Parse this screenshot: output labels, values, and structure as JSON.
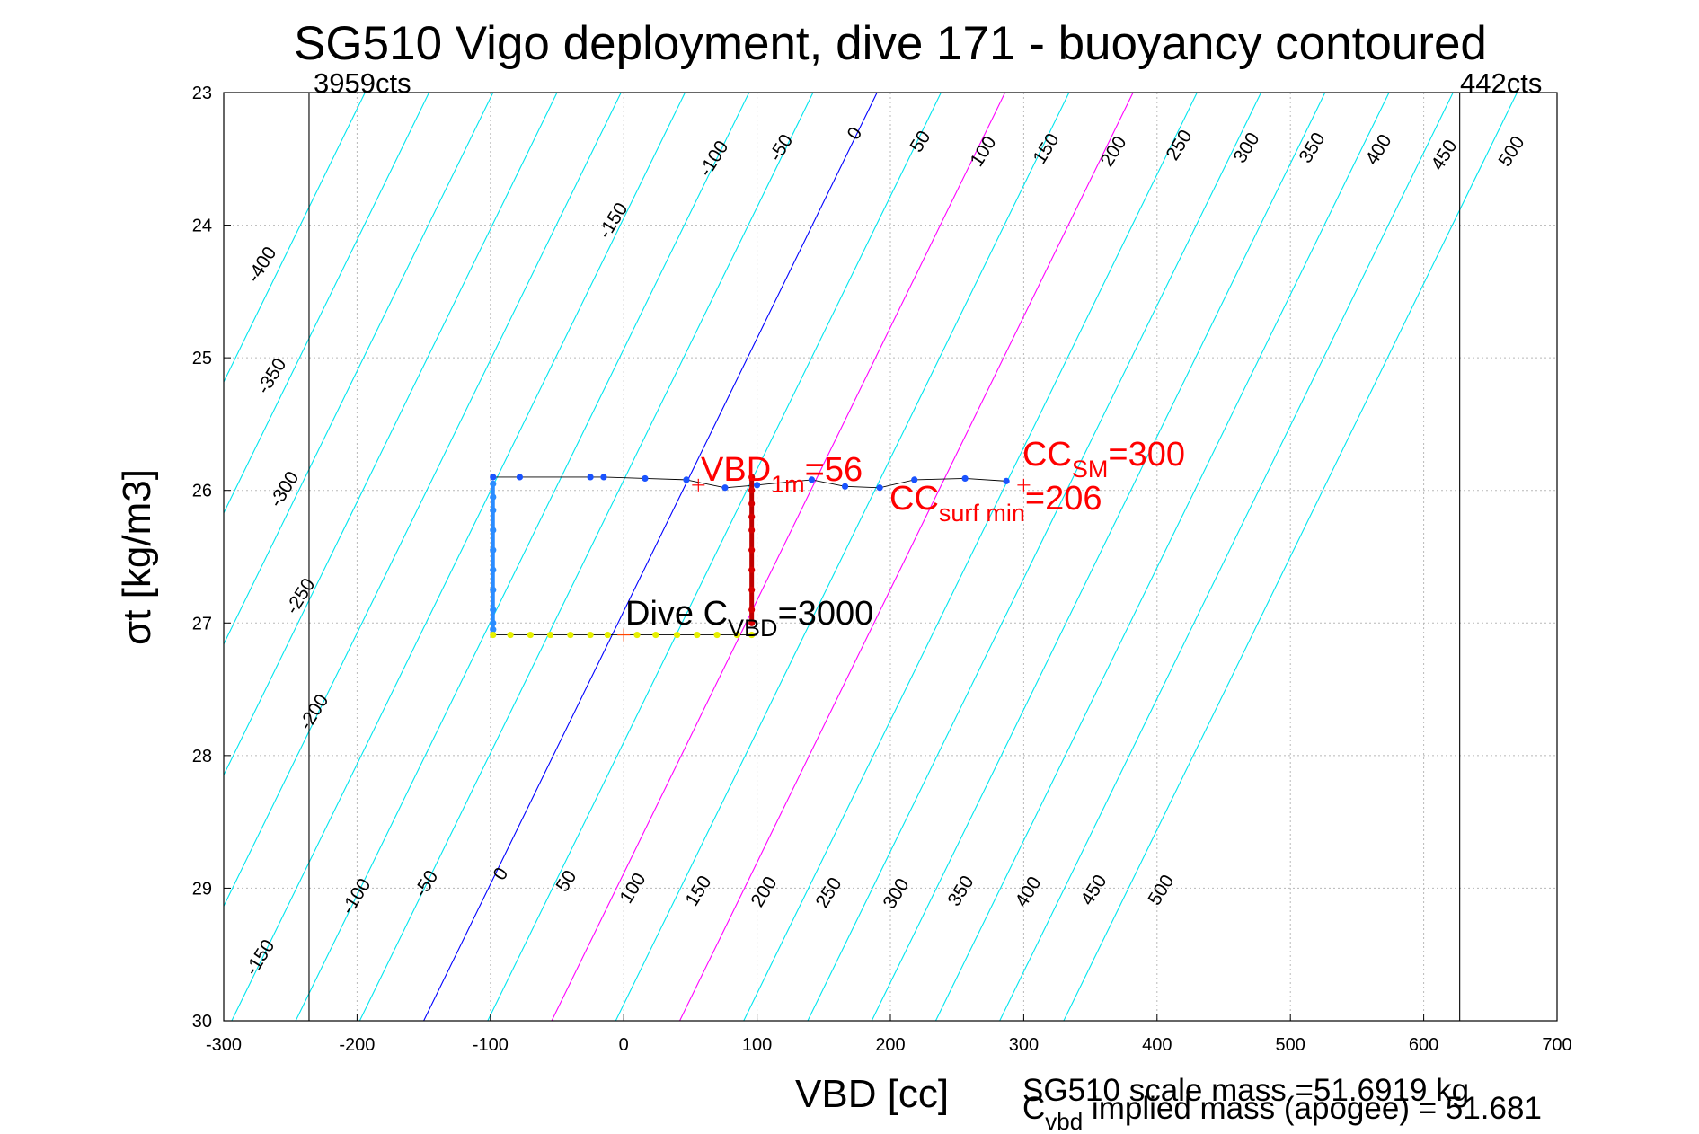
{
  "chart_data": {
    "type": "scatter",
    "title": "SG510 Vigo deployment, dive 171 - buoyancy contoured",
    "xlabel": "VBD [cc]",
    "ylabel": "σt [kg/m3]",
    "xlim": [
      -300,
      700
    ],
    "ylim": [
      23,
      30
    ],
    "y_reversed": true,
    "grid": true,
    "x_ticks": [
      -300,
      -200,
      -100,
      0,
      100,
      200,
      300,
      400,
      500,
      600,
      700
    ],
    "y_ticks": [
      23,
      24,
      25,
      26,
      27,
      28,
      29,
      30
    ],
    "limit_lines": [
      {
        "x": -236,
        "label": "3959cts"
      },
      {
        "x": 627,
        "label": "442cts"
      }
    ],
    "contours": {
      "levels": [
        -400,
        -350,
        -300,
        -250,
        -200,
        -150,
        -100,
        -50,
        0,
        50,
        100,
        150,
        200,
        250,
        300,
        350,
        400,
        450,
        500
      ],
      "zero_color": "#0000ff",
      "highlight_levels": [
        100,
        200
      ],
      "highlight_color": "#ff00ff",
      "other_color": "#00e5ee",
      "top_labels": [
        "-100",
        "-50",
        "0",
        "50",
        "100",
        "150",
        "200",
        "250",
        "300",
        "350",
        "400",
        "450",
        "500"
      ],
      "upper_left_labels": [
        "-150",
        "-400",
        "-350",
        "-300",
        "-250",
        "-200"
      ],
      "bottom_labels": [
        "-150",
        "-100",
        "-50",
        "0",
        "50",
        "100",
        "150",
        "200",
        "250",
        "300",
        "350",
        "400",
        "450",
        "500"
      ]
    },
    "series": [
      {
        "color": "#1a53ff",
        "points": [
          [
            -98,
            25.9
          ],
          [
            -78,
            25.9
          ],
          [
            -25,
            25.9
          ],
          [
            -15,
            25.9
          ],
          [
            16,
            25.91
          ],
          [
            47,
            25.92
          ],
          [
            76,
            25.98
          ],
          [
            100,
            25.96
          ],
          [
            141,
            25.92
          ],
          [
            166,
            25.97
          ],
          [
            192,
            25.98
          ],
          [
            218,
            25.92
          ],
          [
            256,
            25.91
          ],
          [
            287,
            25.93
          ]
        ]
      },
      {
        "color": "#2b8cff",
        "points": [
          [
            -98,
            25.95
          ],
          [
            -98,
            26.05
          ],
          [
            -98,
            26.15
          ],
          [
            -98,
            26.3
          ],
          [
            -98,
            26.45
          ],
          [
            -98,
            26.6
          ],
          [
            -98,
            26.75
          ],
          [
            -98,
            26.9
          ],
          [
            -98,
            27.0
          ],
          [
            -98,
            27.05
          ]
        ]
      },
      {
        "color": "#e6f000",
        "points": [
          [
            -98,
            27.09
          ],
          [
            -85,
            27.09
          ],
          [
            -70,
            27.09
          ],
          [
            -55,
            27.09
          ],
          [
            -40,
            27.09
          ],
          [
            -25,
            27.09
          ],
          [
            -12,
            27.09
          ],
          [
            10,
            27.09
          ],
          [
            24,
            27.09
          ],
          [
            40,
            27.09
          ],
          [
            55,
            27.09
          ],
          [
            70,
            27.09
          ],
          [
            85,
            27.09
          ],
          [
            96,
            27.09
          ]
        ]
      },
      {
        "color": "#d60000",
        "points": [
          [
            96,
            25.9
          ],
          [
            96,
            26.0
          ],
          [
            96,
            26.1
          ],
          [
            96,
            26.2
          ],
          [
            96,
            26.3
          ],
          [
            96,
            26.45
          ],
          [
            96,
            26.6
          ],
          [
            96,
            26.75
          ],
          [
            96,
            26.9
          ],
          [
            96,
            27.0
          ]
        ]
      }
    ],
    "markers": [
      {
        "x": 56,
        "y": 25.96
      },
      {
        "x": 300,
        "y": 25.96
      },
      {
        "x": 0,
        "y": 27.09
      }
    ],
    "annotations": [
      {
        "text": "VBD",
        "sub": "1m",
        "tail": "=56"
      },
      {
        "text": "CC",
        "sub": "SM",
        "tail": "=300"
      },
      {
        "text": "CC",
        "sub": "surf min",
        "tail": "=206"
      },
      {
        "text": "Dive C",
        "sub": "VBD",
        "tail": "=3000"
      }
    ],
    "footer": [
      "SG510 scale mass =51.6919 kg",
      {
        "text": "C",
        "sub": "vbd",
        "tail": " implied mass (apogee) = 51.681"
      }
    ]
  }
}
